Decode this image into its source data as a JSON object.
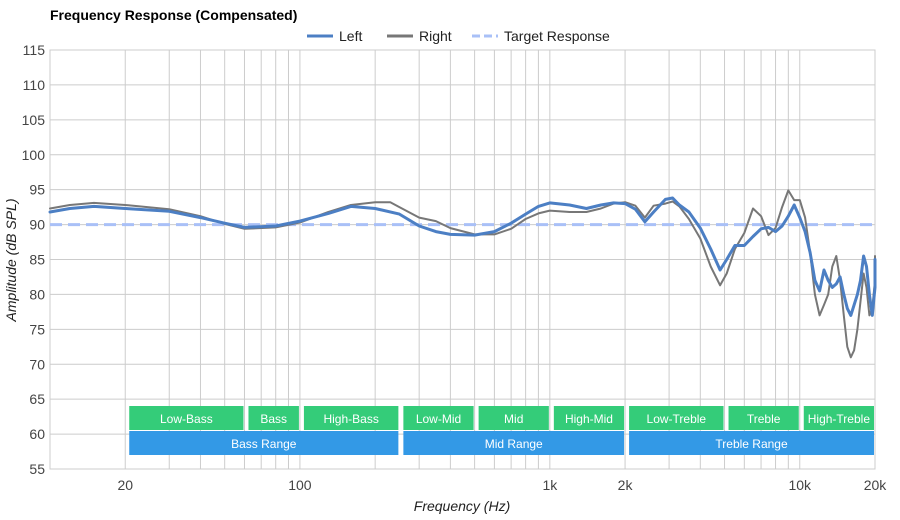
{
  "chart_data": {
    "type": "line",
    "title": "Frequency Response (Compensated)",
    "xlabel": "Frequency (Hz)",
    "ylabel": "Amplitude (dB SPL)",
    "xscale": "log",
    "xlim": [
      10,
      20000
    ],
    "ylim": [
      55,
      115
    ],
    "yticks": [
      55,
      60,
      65,
      70,
      75,
      80,
      85,
      90,
      95,
      100,
      105,
      110,
      115
    ],
    "xticks": [
      {
        "value": 20,
        "label": "20"
      },
      {
        "value": 100,
        "label": "100"
      },
      {
        "value": 1000,
        "label": "1k"
      },
      {
        "value": 2000,
        "label": "2k"
      },
      {
        "value": 10000,
        "label": "10k"
      },
      {
        "value": 20000,
        "label": "20k"
      }
    ],
    "minor_gridlines_x": [
      20,
      30,
      40,
      50,
      60,
      70,
      80,
      90,
      100,
      200,
      300,
      400,
      500,
      600,
      700,
      800,
      900,
      1000,
      2000,
      3000,
      4000,
      5000,
      6000,
      7000,
      8000,
      9000,
      10000,
      20000
    ],
    "grid": true,
    "legend_position": "top-center",
    "series": [
      {
        "name": "Left",
        "color": "#4c7fc4",
        "style": "solid",
        "points": [
          [
            10,
            91.8
          ],
          [
            12,
            92.3
          ],
          [
            15,
            92.6
          ],
          [
            20,
            92.3
          ],
          [
            30,
            91.9
          ],
          [
            40,
            91
          ],
          [
            50,
            90.2
          ],
          [
            60,
            89.6
          ],
          [
            80,
            89.8
          ],
          [
            100,
            90.5
          ],
          [
            130,
            91.6
          ],
          [
            160,
            92.6
          ],
          [
            200,
            92.3
          ],
          [
            250,
            91.5
          ],
          [
            300,
            89.8
          ],
          [
            350,
            89
          ],
          [
            400,
            88.6
          ],
          [
            500,
            88.5
          ],
          [
            600,
            89
          ],
          [
            700,
            90.2
          ],
          [
            800,
            91.5
          ],
          [
            900,
            92.6
          ],
          [
            1000,
            93.1
          ],
          [
            1200,
            92.8
          ],
          [
            1400,
            92.3
          ],
          [
            1600,
            92.8
          ],
          [
            1800,
            93.1
          ],
          [
            2000,
            93
          ],
          [
            2200,
            92.2
          ],
          [
            2400,
            90.4
          ],
          [
            2600,
            91.8
          ],
          [
            2900,
            93.6
          ],
          [
            3100,
            93.8
          ],
          [
            3300,
            92.8
          ],
          [
            3600,
            91.8
          ],
          [
            4000,
            89.5
          ],
          [
            4400,
            86.5
          ],
          [
            4800,
            83.5
          ],
          [
            5100,
            85
          ],
          [
            5500,
            87
          ],
          [
            6000,
            87
          ],
          [
            6500,
            88.3
          ],
          [
            7000,
            89.4
          ],
          [
            7500,
            89.6
          ],
          [
            8000,
            89
          ],
          [
            8500,
            89.8
          ],
          [
            9000,
            91.2
          ],
          [
            9500,
            92.8
          ],
          [
            10000,
            91
          ],
          [
            10500,
            89
          ],
          [
            11000,
            86
          ],
          [
            11500,
            82
          ],
          [
            12000,
            80.5
          ],
          [
            12500,
            83.5
          ],
          [
            13000,
            82
          ],
          [
            13500,
            81
          ],
          [
            14000,
            81.5
          ],
          [
            14500,
            82.5
          ],
          [
            15000,
            80
          ],
          [
            15500,
            78
          ],
          [
            16000,
            77
          ],
          [
            16500,
            78.5
          ],
          [
            17000,
            80
          ],
          [
            17500,
            82
          ],
          [
            18000,
            85.5
          ],
          [
            18500,
            84
          ],
          [
            19000,
            80
          ],
          [
            19500,
            77
          ],
          [
            20000,
            81
          ],
          [
            20500,
            85
          ],
          [
            21000,
            84
          ]
        ]
      },
      {
        "name": "Right",
        "color": "#777777",
        "style": "solid",
        "points": [
          [
            10,
            92.3
          ],
          [
            12,
            92.8
          ],
          [
            15,
            93.1
          ],
          [
            20,
            92.8
          ],
          [
            30,
            92.2
          ],
          [
            40,
            91.2
          ],
          [
            50,
            90.1
          ],
          [
            60,
            89.4
          ],
          [
            80,
            89.6
          ],
          [
            100,
            90.3
          ],
          [
            130,
            91.8
          ],
          [
            160,
            92.8
          ],
          [
            200,
            93.2
          ],
          [
            230,
            93.2
          ],
          [
            250,
            92.5
          ],
          [
            300,
            91
          ],
          [
            350,
            90.5
          ],
          [
            400,
            89.5
          ],
          [
            500,
            88.6
          ],
          [
            600,
            88.6
          ],
          [
            700,
            89.4
          ],
          [
            800,
            90.8
          ],
          [
            900,
            91.6
          ],
          [
            1000,
            92
          ],
          [
            1200,
            91.8
          ],
          [
            1400,
            91.8
          ],
          [
            1600,
            92.3
          ],
          [
            1800,
            93
          ],
          [
            2000,
            93.2
          ],
          [
            2200,
            92.7
          ],
          [
            2400,
            91
          ],
          [
            2600,
            92.7
          ],
          [
            2900,
            93
          ],
          [
            3100,
            93.3
          ],
          [
            3300,
            92.6
          ],
          [
            3600,
            90.8
          ],
          [
            4000,
            88
          ],
          [
            4400,
            84
          ],
          [
            4800,
            81.3
          ],
          [
            5100,
            83
          ],
          [
            5500,
            86.5
          ],
          [
            6000,
            88.8
          ],
          [
            6500,
            92.3
          ],
          [
            7000,
            91.2
          ],
          [
            7500,
            88.5
          ],
          [
            8000,
            89.5
          ],
          [
            8500,
            92.5
          ],
          [
            9000,
            94.9
          ],
          [
            9500,
            93.5
          ],
          [
            10000,
            93.5
          ],
          [
            10500,
            91
          ],
          [
            11000,
            86
          ],
          [
            11500,
            80
          ],
          [
            12000,
            77
          ],
          [
            12500,
            78.5
          ],
          [
            13000,
            80
          ],
          [
            13500,
            84
          ],
          [
            14000,
            85.5
          ],
          [
            14500,
            82
          ],
          [
            15000,
            77
          ],
          [
            15500,
            72.5
          ],
          [
            16000,
            71
          ],
          [
            16500,
            72
          ],
          [
            17000,
            75
          ],
          [
            17500,
            79
          ],
          [
            18000,
            83
          ],
          [
            18500,
            81
          ],
          [
            19000,
            77
          ],
          [
            19500,
            78
          ],
          [
            20000,
            82
          ],
          [
            20500,
            85.5
          ],
          [
            21000,
            85
          ]
        ]
      },
      {
        "name": "Target Response",
        "color": "#a9c0f7",
        "style": "dashed",
        "points": [
          [
            10,
            90
          ],
          [
            20000,
            90
          ]
        ]
      }
    ],
    "bands": [
      {
        "label": "Low-Bass",
        "from": 20,
        "to": 60,
        "row": 1
      },
      {
        "label": "Bass",
        "from": 60,
        "to": 100,
        "row": 1
      },
      {
        "label": "High-Bass",
        "from": 100,
        "to": 250,
        "row": 1
      },
      {
        "label": "Low-Mid",
        "from": 250,
        "to": 500,
        "row": 1
      },
      {
        "label": "Mid",
        "from": 500,
        "to": 1000,
        "row": 1
      },
      {
        "label": "High-Mid",
        "from": 1000,
        "to": 2000,
        "row": 1
      },
      {
        "label": "Low-Treble",
        "from": 2000,
        "to": 5000,
        "row": 1
      },
      {
        "label": "Treble",
        "from": 5000,
        "to": 10000,
        "row": 1
      },
      {
        "label": "High-Treble",
        "from": 10000,
        "to": 20000,
        "row": 1
      },
      {
        "label": "Bass Range",
        "from": 20,
        "to": 250,
        "row": 2
      },
      {
        "label": "Mid Range",
        "from": 250,
        "to": 2000,
        "row": 2
      },
      {
        "label": "Treble Range",
        "from": 2000,
        "to": 20000,
        "row": 2
      }
    ],
    "band_colors": {
      "row1": "#34cc79",
      "row2": "#3399e6"
    }
  }
}
